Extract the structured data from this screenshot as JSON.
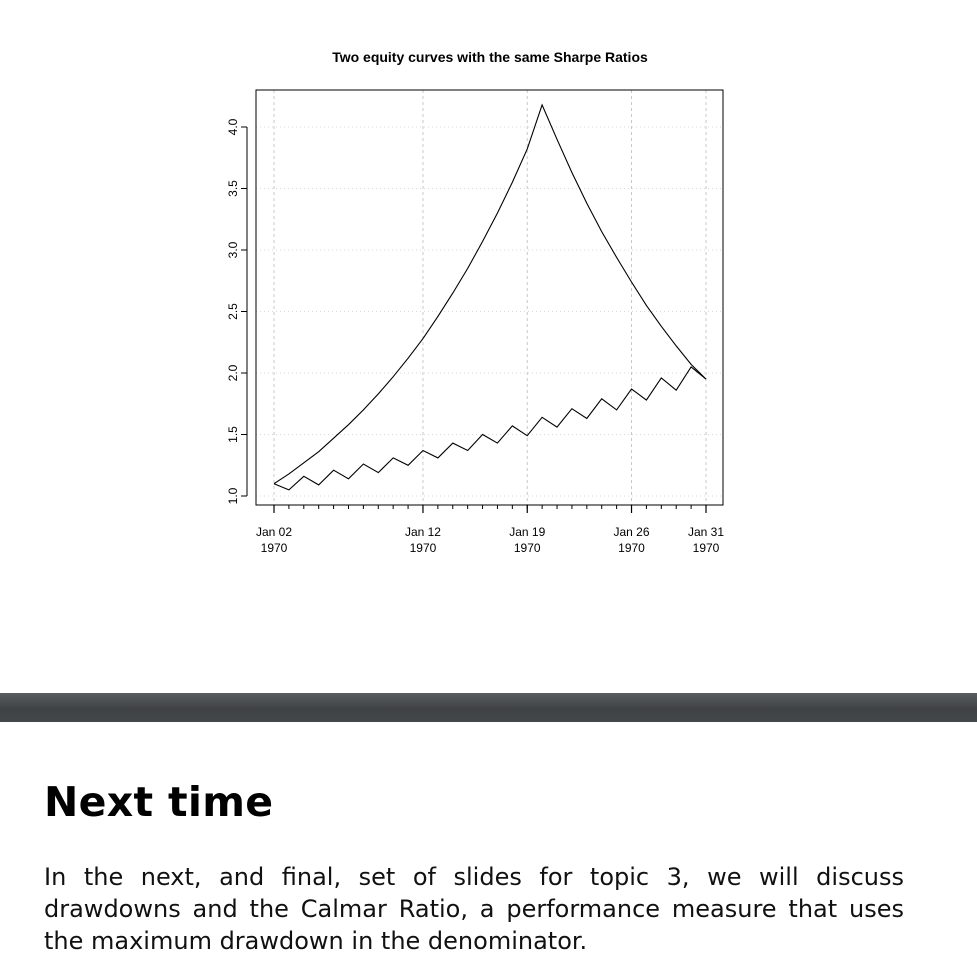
{
  "chart_data": {
    "type": "line",
    "title": "Two equity curves with the same Sharpe Ratios",
    "xlabel": "",
    "ylabel": "",
    "ylim": [
      1.0,
      4.0
    ],
    "xlim": [
      "1970-01-02",
      "1970-01-31"
    ],
    "grid": true,
    "x_ticks": [
      {
        "date": "1970-01-02",
        "label_top": "Jan 02",
        "label_bottom": "1970"
      },
      {
        "date": "1970-01-12",
        "label_top": "Jan 12",
        "label_bottom": "1970"
      },
      {
        "date": "1970-01-19",
        "label_top": "Jan 19",
        "label_bottom": "1970"
      },
      {
        "date": "1970-01-26",
        "label_top": "Jan 26",
        "label_bottom": "1970"
      },
      {
        "date": "1970-01-31",
        "label_top": "Jan 31",
        "label_bottom": "1970"
      }
    ],
    "y_ticks": [
      "1.0",
      "1.5",
      "2.0",
      "2.5",
      "3.0",
      "3.5",
      "4.0"
    ],
    "series": [
      {
        "x": [
          "1970-01-02",
          "1970-01-03",
          "1970-01-04",
          "1970-01-05",
          "1970-01-06",
          "1970-01-07",
          "1970-01-08",
          "1970-01-09",
          "1970-01-10",
          "1970-01-11",
          "1970-01-12",
          "1970-01-13",
          "1970-01-14",
          "1970-01-15",
          "1970-01-16",
          "1970-01-17",
          "1970-01-18",
          "1970-01-19",
          "1970-01-20",
          "1970-01-21",
          "1970-01-22",
          "1970-01-23",
          "1970-01-24",
          "1970-01-25",
          "1970-01-26",
          "1970-01-27",
          "1970-01-28",
          "1970-01-29",
          "1970-01-30",
          "1970-01-31"
        ],
        "y": [
          1.1,
          1.18,
          1.27,
          1.36,
          1.47,
          1.58,
          1.7,
          1.83,
          1.97,
          2.12,
          2.28,
          2.46,
          2.65,
          2.85,
          3.07,
          3.3,
          3.55,
          3.82,
          4.18,
          3.9,
          3.63,
          3.38,
          3.15,
          2.94,
          2.74,
          2.55,
          2.38,
          2.22,
          2.07,
          1.95
        ]
      },
      {
        "x": [
          "1970-01-02",
          "1970-01-03",
          "1970-01-04",
          "1970-01-05",
          "1970-01-06",
          "1970-01-07",
          "1970-01-08",
          "1970-01-09",
          "1970-01-10",
          "1970-01-11",
          "1970-01-12",
          "1970-01-13",
          "1970-01-14",
          "1970-01-15",
          "1970-01-16",
          "1970-01-17",
          "1970-01-18",
          "1970-01-19",
          "1970-01-20",
          "1970-01-21",
          "1970-01-22",
          "1970-01-23",
          "1970-01-24",
          "1970-01-25",
          "1970-01-26",
          "1970-01-27",
          "1970-01-28",
          "1970-01-29",
          "1970-01-30",
          "1970-01-31"
        ],
        "y": [
          1.1,
          1.05,
          1.16,
          1.09,
          1.21,
          1.14,
          1.26,
          1.19,
          1.31,
          1.25,
          1.37,
          1.31,
          1.43,
          1.37,
          1.5,
          1.43,
          1.57,
          1.49,
          1.64,
          1.56,
          1.71,
          1.63,
          1.79,
          1.7,
          1.87,
          1.78,
          1.96,
          1.86,
          2.05,
          1.95
        ]
      }
    ]
  },
  "section": {
    "heading": "Next time",
    "body": "In the next, and final, set of slides for topic 3, we will discuss drawdowns and the Calmar Ratio, a performance measure that uses the maximum drawdown in the denominator."
  }
}
